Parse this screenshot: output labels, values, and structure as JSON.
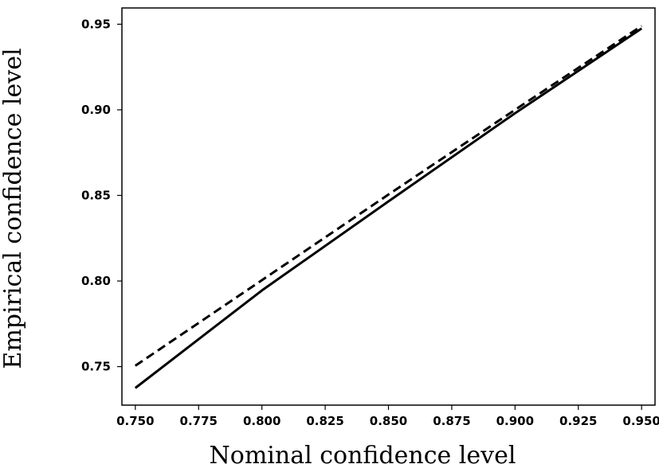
{
  "chart_data": {
    "type": "line",
    "title": "",
    "xlabel": "Nominal confidence level",
    "ylabel": "Empirical confidence level",
    "xlim": [
      0.7447,
      0.9553
    ],
    "ylim": [
      0.7275,
      0.9595
    ],
    "x_ticks": [
      0.75,
      0.775,
      0.8,
      0.825,
      0.85,
      0.875,
      0.9,
      0.925,
      0.95
    ],
    "x_tick_labels": [
      "0.750",
      "0.775",
      "0.800",
      "0.825",
      "0.850",
      "0.875",
      "0.900",
      "0.925",
      "0.950"
    ],
    "y_ticks": [
      0.75,
      0.8,
      0.85,
      0.9,
      0.95
    ],
    "y_tick_labels": [
      "0.75",
      "0.80",
      "0.85",
      "0.90",
      "0.95"
    ],
    "grid": false,
    "legend": "none",
    "series": [
      {
        "style": "solid",
        "color": "#000000",
        "x": [
          0.75,
          0.8,
          0.85,
          0.9,
          0.95
        ],
        "y": [
          0.7375,
          0.7945,
          0.8465,
          0.898,
          0.9475
        ]
      },
      {
        "style": "dashed",
        "color": "#000000",
        "x": [
          0.75,
          0.8,
          0.85,
          0.9,
          0.95
        ],
        "y": [
          0.7505,
          0.8005,
          0.8505,
          0.9,
          0.949
        ]
      }
    ]
  }
}
